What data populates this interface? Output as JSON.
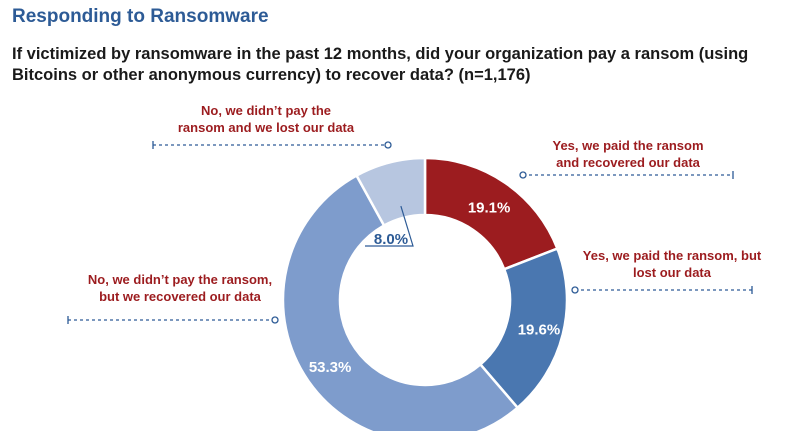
{
  "header": {
    "title": "Responding to Ransomware"
  },
  "question": "If victimized by ransomware in the past 12 months, did your organization pay a ransom (using Bitcoins or other anonymous currency) to recover data? (n=1,176)",
  "callouts": {
    "paid_recovered": [
      "Yes, we paid the ransom",
      "and recovered our data"
    ],
    "paid_lost": [
      "Yes, we paid the ransom, but",
      "lost our data"
    ],
    "not_paid_recovered": [
      "No, we didn’t pay the ransom,",
      "but we recovered our data"
    ],
    "not_paid_lost": [
      "No, we didn’t pay the",
      "ransom and we lost our data"
    ]
  },
  "colors": {
    "title": "#2d5b96",
    "label_red": "#9c1c1f",
    "dashed_line": "#2d5b96"
  },
  "chart_data": {
    "type": "pie",
    "donut": true,
    "title": "",
    "categories": [
      "Yes, we paid the ransom and recovered our data",
      "Yes, we paid the ransom, but lost our data",
      "No, we didn’t pay the ransom, but we recovered our data",
      "No, we didn’t pay the ransom and we lost our data"
    ],
    "values": [
      19.1,
      19.6,
      53.3,
      8.0
    ],
    "labels": [
      "19.1%",
      "19.6%",
      "53.3%",
      "8.0%"
    ],
    "colors": [
      "#9c1c1f",
      "#4a77b0",
      "#7e9ccc",
      "#b7c6e0"
    ]
  }
}
